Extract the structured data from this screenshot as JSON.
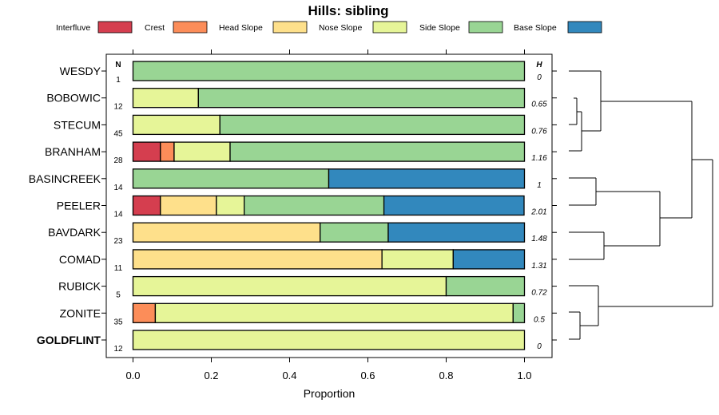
{
  "chart_data": {
    "type": "bar",
    "orientation": "horizontal",
    "stacked": true,
    "title": "Hills: sibling",
    "xlabel": "Proportion",
    "ylabel": "",
    "xlim": [
      0,
      1
    ],
    "xticks": [
      "0.0",
      "0.2",
      "0.4",
      "0.6",
      "0.8",
      "1.0"
    ],
    "n_header": "N",
    "h_header": "H",
    "legend": [
      {
        "name": "Interfluve",
        "color": "#d53e4f"
      },
      {
        "name": "Crest",
        "color": "#fc8d59"
      },
      {
        "name": "Head Slope",
        "color": "#fee08b"
      },
      {
        "name": "Nose Slope",
        "color": "#e6f598"
      },
      {
        "name": "Side Slope",
        "color": "#99d594"
      },
      {
        "name": "Base Slope",
        "color": "#3288bd"
      }
    ],
    "categories": [
      "WESDY",
      "BOBOWIC",
      "STECUM",
      "BRANHAM",
      "BASINCREEK",
      "PEELER",
      "BAVDARK",
      "COMAD",
      "RUBICK",
      "ZONITE",
      "GOLDFLINT"
    ],
    "highlight": "GOLDFLINT",
    "n": [
      "1",
      "12",
      "45",
      "28",
      "14",
      "14",
      "23",
      "11",
      "5",
      "35",
      "12"
    ],
    "h": [
      "0",
      "0.65",
      "0.76",
      "1.16",
      "1",
      "2.01",
      "1.48",
      "1.31",
      "0.72",
      "0.5",
      "0"
    ],
    "series": [
      {
        "name": "Interfluve",
        "values": [
          0,
          0,
          0,
          0.07,
          0,
          0.07,
          0,
          0,
          0,
          0,
          0
        ]
      },
      {
        "name": "Crest",
        "values": [
          0,
          0,
          0,
          0.035,
          0,
          0,
          0,
          0,
          0,
          0.057,
          0
        ]
      },
      {
        "name": "Head Slope",
        "values": [
          0,
          0,
          0,
          0,
          0,
          0.143,
          0.478,
          0.636,
          0,
          0,
          0
        ]
      },
      {
        "name": "Nose Slope",
        "values": [
          0,
          0.167,
          0.222,
          0.143,
          0,
          0.071,
          0,
          0.182,
          0.8,
          0.914,
          1.0
        ]
      },
      {
        "name": "Side Slope",
        "values": [
          1.0,
          0.833,
          0.778,
          0.752,
          0.5,
          0.357,
          0.174,
          0,
          0.2,
          0.029,
          0
        ]
      },
      {
        "name": "Base Slope",
        "values": [
          0,
          0,
          0,
          0,
          0.5,
          0.358,
          0.348,
          0.182,
          0,
          0,
          0
        ]
      }
    ]
  }
}
